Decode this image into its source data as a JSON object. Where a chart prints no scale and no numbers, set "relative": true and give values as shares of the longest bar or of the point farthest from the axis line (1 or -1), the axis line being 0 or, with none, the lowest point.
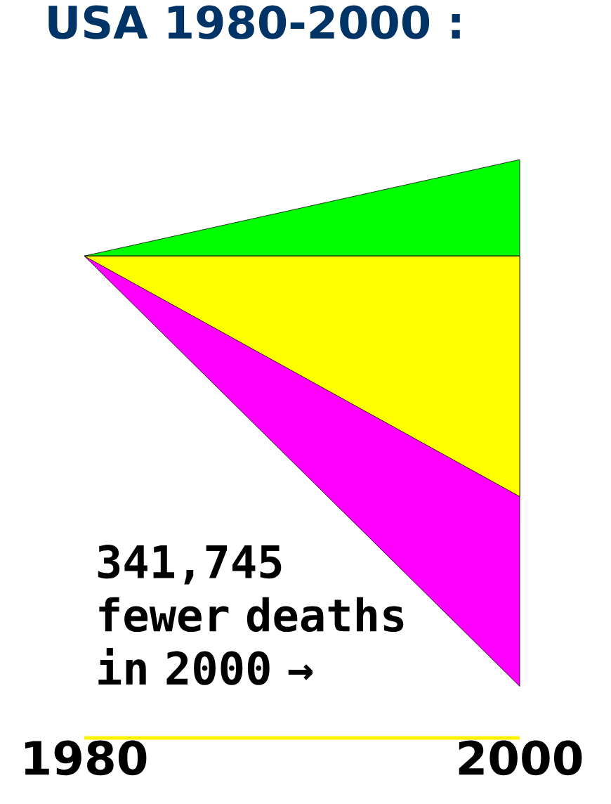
{
  "chart_data": {
    "type": "area",
    "title": "USA 1980-2000 :",
    "relative": true,
    "categories": [
      "1980",
      "2000"
    ],
    "series": [
      {
        "color": "#00ff00",
        "values": [
          0,
          0.224
        ]
      },
      {
        "color": "#ff00ff",
        "values": [
          0,
          -1
        ]
      },
      {
        "color": "#ffff00",
        "values": [
          0,
          -0.559
        ]
      }
    ],
    "annotations": [
      "341,745 fewer deaths in 2000 →"
    ]
  }
}
